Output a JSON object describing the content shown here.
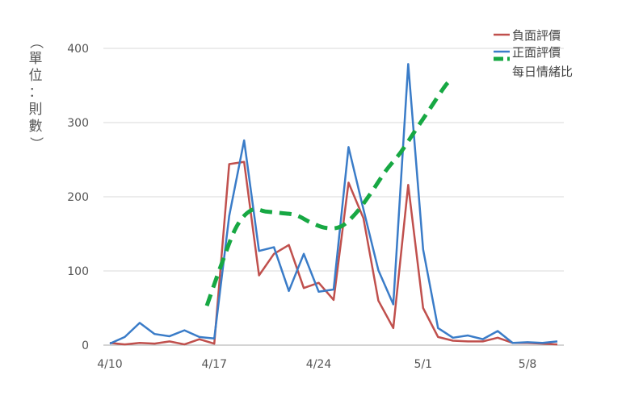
{
  "chart_data": {
    "type": "line",
    "title": "",
    "ylabel": "（單位：則數）",
    "ylabel_chars": [
      "（",
      "單",
      "位",
      "：",
      "則",
      "數",
      "）"
    ],
    "ylim": [
      0,
      400
    ],
    "y_ticks": [
      "0",
      "100",
      "200",
      "300",
      "400"
    ],
    "x_tick_labels": [
      "4/10",
      "4/17",
      "4/24",
      "5/1",
      "5/8"
    ],
    "x_tick_index": [
      0,
      7,
      14,
      21,
      28
    ],
    "n_points": 31,
    "grid": true,
    "legend_position": "top-right",
    "series": [
      {
        "name": "負面評價",
        "color": "#c0504d",
        "values": [
          3,
          1,
          3,
          2,
          5,
          1,
          8,
          2,
          244,
          247,
          94,
          123,
          135,
          77,
          84,
          61,
          219,
          171,
          60,
          23,
          216,
          50,
          11,
          6,
          5,
          5,
          10,
          3,
          3,
          2,
          1
        ]
      },
      {
        "name": "正面評價",
        "color": "#3a7cc8",
        "values": [
          2,
          11,
          30,
          15,
          12,
          20,
          11,
          9,
          174,
          276,
          127,
          132,
          73,
          123,
          72,
          75,
          267,
          183,
          101,
          55,
          379,
          129,
          23,
          10,
          13,
          8,
          19,
          3,
          4,
          3,
          5
        ]
      },
      {
        "name": "每日情緒比",
        "color": "#17a843",
        "dashed": true,
        "start_index": 6.5,
        "values_x": [
          6.5,
          7.5,
          8.5,
          9.5,
          10.5,
          11.5,
          12.5,
          13.5,
          14.5,
          15.5,
          16.5,
          17.5,
          18.5,
          19.5,
          20.5,
          21.5,
          22.5,
          23.0
        ],
        "values": [
          53,
          110,
          160,
          182,
          180,
          178,
          175,
          165,
          158,
          160,
          178,
          205,
          235,
          260,
          290,
          320,
          350,
          360
        ]
      }
    ]
  }
}
